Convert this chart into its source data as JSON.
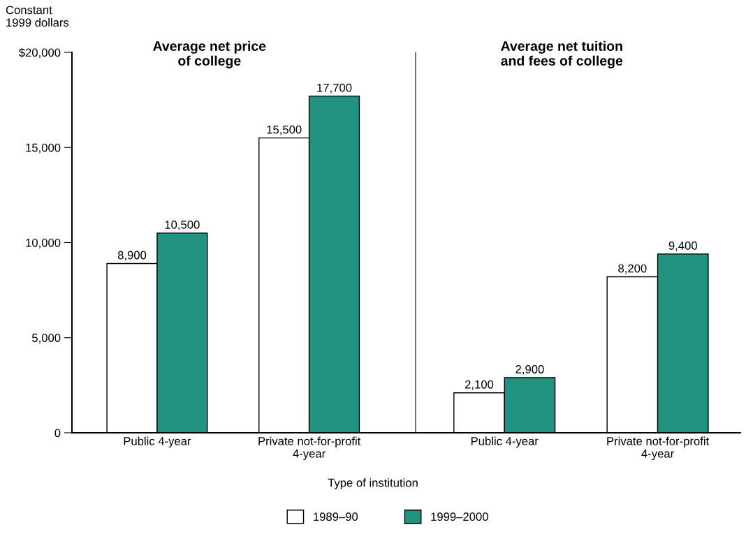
{
  "chart_data": [
    {
      "type": "bar",
      "title": "Average net price\nof college",
      "ylabel": "Constant\n1999 dollars",
      "xlabel": "Type of institution",
      "categories": [
        "Public 4-year",
        "Private not-for-profit\n4-year"
      ],
      "series": [
        {
          "name": "1989–90",
          "color": "#ffffff",
          "values": [
            8900,
            15500
          ],
          "value_labels": [
            "8,900",
            "15,500"
          ]
        },
        {
          "name": "1999–2000",
          "color": "#219380",
          "values": [
            10500,
            17700
          ],
          "value_labels": [
            "10,500",
            "17,700"
          ]
        }
      ],
      "ylim": [
        0,
        20000
      ],
      "yticks": [
        0,
        {
          "value": 5000,
          "label": "5,000"
        },
        {
          "value": 10000,
          "label": "10,000"
        },
        {
          "value": 15000,
          "label": "15,000"
        },
        {
          "value": 20000,
          "label": "$20,000"
        }
      ],
      "grid": false,
      "legend": "bottom"
    },
    {
      "type": "bar",
      "title": "Average net tuition\nand fees of college",
      "categories": [
        "Public 4-year",
        "Private not-for-profit\n4-year"
      ],
      "series": [
        {
          "color": "#ffffff",
          "values": [
            2100,
            8200
          ],
          "value_labels": [
            "2,100",
            "8,200"
          ]
        },
        {
          "color": "#219380",
          "values": [
            2900,
            9400
          ],
          "value_labels": [
            "2,900",
            "9,400"
          ]
        }
      ],
      "ylim": [
        0,
        20000
      ],
      "tick_labels": "x",
      "grid": false
    }
  ]
}
